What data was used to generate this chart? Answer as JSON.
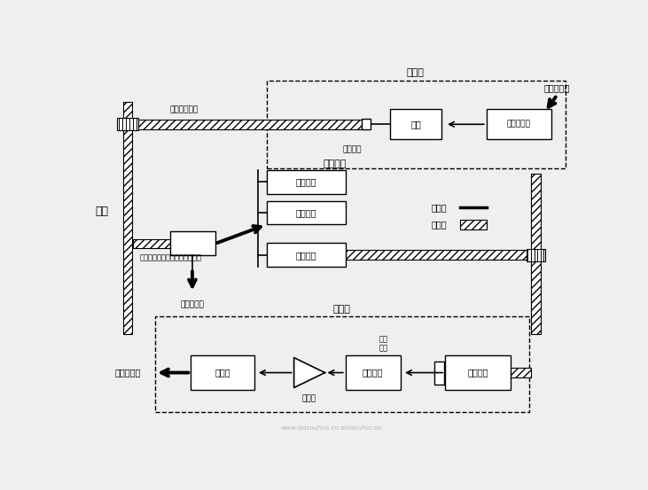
{
  "bg_color": "#efefef",
  "legend": {
    "electric_label": "电信号",
    "optical_label": "光信号"
  },
  "top": {
    "title": "发送机",
    "input_label": "电信号输入",
    "box_elec_label": "电功放大器",
    "box_light_label": "光源",
    "connector_label": "光连接器",
    "spool_label": "光纤放大器盒"
  },
  "middle": {
    "title": "光中继器",
    "outer_label": "光中继器（光纤放大器封装盒）",
    "spool_label": "盘纤枰备份",
    "box1_label": "光放大器",
    "box2_label": "电放大器",
    "box3_label": "光放大器"
  },
  "bottom": {
    "title": "接收机",
    "box1_label": "光放大器",
    "box2_label": "光分波器",
    "box3_label": "导波器",
    "amp_label": "放大器",
    "output_label": "电信号输出",
    "freq_label": "光波\n频段"
  },
  "side_label": "光缆"
}
